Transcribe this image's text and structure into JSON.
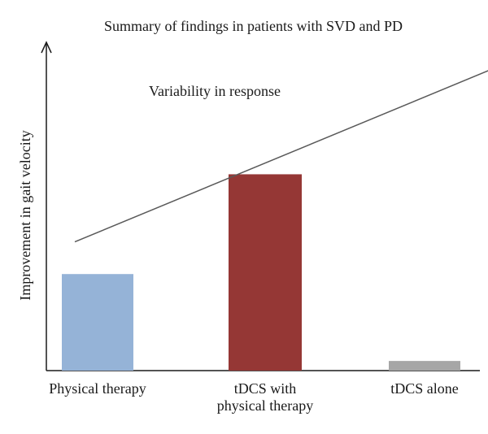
{
  "chart_data": {
    "type": "bar",
    "title": "Summary of findings in patients with SVD and PD",
    "xlabel": "",
    "ylabel": "Improvement in gait velocity",
    "categories": [
      [
        "Physical therapy"
      ],
      [
        "tDCS with",
        "physical therapy"
      ],
      [
        "tDCS alone"
      ]
    ],
    "values": [
      30,
      61,
      3
    ],
    "bar_colors": [
      "#95b3d7",
      "#953735",
      "#a6a6a6"
    ],
    "ylim": [
      0,
      100
    ],
    "grid": false,
    "annotation": {
      "text": "Variability in response",
      "arrow": {
        "from": [
          0,
          40
        ],
        "to": [
          2.6,
          95
        ]
      },
      "arrow_color": "#595959"
    }
  }
}
